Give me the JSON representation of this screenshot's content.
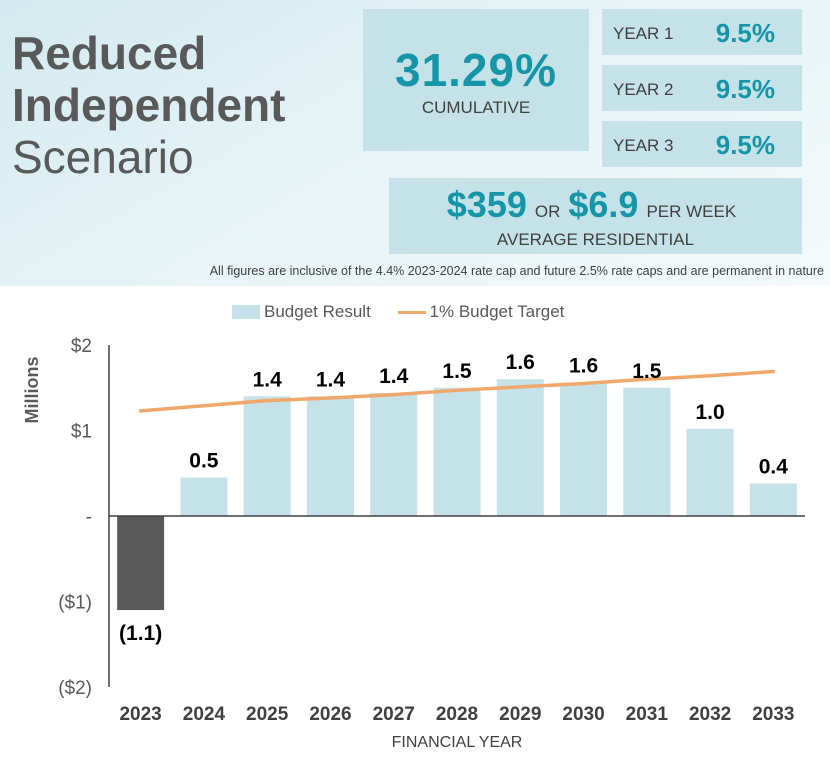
{
  "header": {
    "title_line1": "Reduced",
    "title_line2": "Independent",
    "title_line3": "Scenario"
  },
  "cumulative": {
    "value": "31.29%",
    "label": "CUMULATIVE"
  },
  "years": [
    {
      "label": "YEAR 1",
      "value": "9.5%"
    },
    {
      "label": "YEAR 2",
      "value": "9.5%"
    },
    {
      "label": "YEAR 3",
      "value": "9.5%"
    }
  ],
  "average": {
    "annual": "$359",
    "or_label": "OR",
    "weekly": "$6.9",
    "per_week_label": "PER WEEK",
    "label": "AVERAGE RESIDENTIAL"
  },
  "note": "All figures are inclusive of the 4.4% 2023-2024 rate cap and future 2.5% rate caps and are permanent in nature",
  "colors": {
    "accent": "#1596a8",
    "box": "#c4e2e8",
    "bar_positive": "#c4e2e8",
    "bar_negative": "#595959",
    "target_line": "#f0a86a"
  },
  "chart_data": {
    "type": "bar",
    "categories": [
      "2023",
      "2024",
      "2025",
      "2026",
      "2027",
      "2028",
      "2029",
      "2030",
      "2031",
      "2032",
      "2033"
    ],
    "series": [
      {
        "name": "Budget Result",
        "type": "bar",
        "values": [
          -1.1,
          0.45,
          1.4,
          1.4,
          1.44,
          1.5,
          1.6,
          1.56,
          1.5,
          1.02,
          0.38
        ]
      },
      {
        "name": "1% Budget Target",
        "type": "line",
        "values": [
          1.23,
          1.29,
          1.35,
          1.38,
          1.42,
          1.47,
          1.51,
          1.55,
          1.6,
          1.64,
          1.69
        ]
      }
    ],
    "data_labels": [
      "(1.1)",
      "0.5",
      "1.4",
      "1.4",
      "1.4",
      "1.5",
      "1.6",
      "1.6",
      "1.5",
      "1.0",
      "0.4"
    ],
    "yticks": [
      {
        "value": 2,
        "label": "$2"
      },
      {
        "value": 1,
        "label": "$1"
      },
      {
        "value": 0,
        "label": "-"
      },
      {
        "value": -1,
        "label": "($1)"
      },
      {
        "value": -2,
        "label": "($2)"
      }
    ],
    "ylim": [
      -2,
      2
    ],
    "ylabel": "Millions",
    "xlabel": "FINANCIAL YEAR",
    "legend_position": "top",
    "grid": false
  }
}
